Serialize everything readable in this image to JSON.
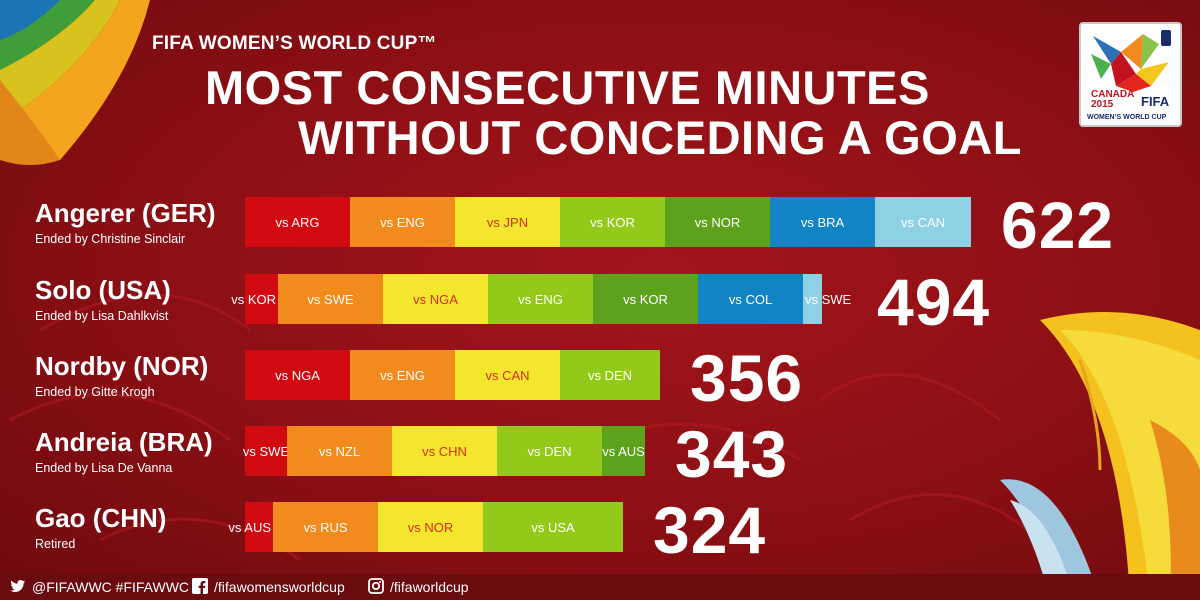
{
  "header": {
    "subtitle": "FIFA WOMEN’S WORLD CUP™",
    "title_line1": "MOST CONSECUTIVE MINUTES",
    "title_line2": "WITHOUT CONCEDING A GOAL"
  },
  "logo": {
    "line1": "CANADA",
    "line2": "2015",
    "brand": "FIFA",
    "tagline": "WOMEN’S WORLD CUP"
  },
  "colors": {
    "background": "#8e0f14",
    "segment_palette": [
      "#d10a12",
      "#f28b1e",
      "#f3e62d",
      "#93c91b",
      "#5da21d",
      "#1384c3",
      "#8fd1e4"
    ]
  },
  "chart_data": {
    "type": "bar",
    "title": "MOST CONSECUTIVE MINUTES WITHOUT CONCEDING A GOAL",
    "xlabel": "",
    "ylabel": "",
    "stacked": true,
    "series": [
      {
        "name": "Angerer (GER)",
        "subtitle": "Ended by Christine Sinclair",
        "total": "622",
        "segments": [
          {
            "label": "vs ARG",
            "value": 90
          },
          {
            "label": "vs ENG",
            "value": 90
          },
          {
            "label": "vs JPN",
            "value": 90
          },
          {
            "label": "vs KOR",
            "value": 90
          },
          {
            "label": "vs NOR",
            "value": 90
          },
          {
            "label": "vs BRA",
            "value": 90
          },
          {
            "label": "vs CAN",
            "value": 82
          }
        ]
      },
      {
        "name": "Solo (USA)",
        "subtitle": "Ended by Lisa Dahlkvist",
        "total": "494",
        "segments": [
          {
            "label": "vs KOR",
            "value": 28
          },
          {
            "label": "vs SWE",
            "value": 90
          },
          {
            "label": "vs NGA",
            "value": 90
          },
          {
            "label": "vs ENG",
            "value": 90
          },
          {
            "label": "vs KOR",
            "value": 90
          },
          {
            "label": "vs COL",
            "value": 90
          },
          {
            "label": "vs SWE",
            "value": 16
          }
        ]
      },
      {
        "name": "Nordby (NOR)",
        "subtitle": "Ended by Gitte Krogh",
        "total": "356",
        "segments": [
          {
            "label": "vs NGA",
            "value": 90
          },
          {
            "label": "vs ENG",
            "value": 90
          },
          {
            "label": "vs CAN",
            "value": 90
          },
          {
            "label": "vs DEN",
            "value": 86
          }
        ]
      },
      {
        "name": "Andreia (BRA)",
        "subtitle": "Ended by Lisa De Vanna",
        "total": "343",
        "segments": [
          {
            "label": "vs SWE",
            "value": 36
          },
          {
            "label": "vs NZL",
            "value": 90
          },
          {
            "label": "vs CHN",
            "value": 90
          },
          {
            "label": "vs DEN",
            "value": 90
          },
          {
            "label": "vs AUS",
            "value": 37
          }
        ]
      },
      {
        "name": "Gao (CHN)",
        "subtitle": "Retired",
        "total": "324",
        "segments": [
          {
            "label": "vs AUS",
            "value": 24
          },
          {
            "label": "vs RUS",
            "value": 90
          },
          {
            "label": "vs NOR",
            "value": 90
          },
          {
            "label": "vs USA",
            "value": 120
          }
        ]
      }
    ]
  },
  "footer": {
    "twitter": "@FIFAWWC #FIFAWWC",
    "facebook": "/fifawomensworldcup",
    "instagram": "/fifaworldcup",
    "twitter_icon": "twitter-icon",
    "facebook_icon": "facebook-icon",
    "instagram_icon": "instagram-icon"
  }
}
